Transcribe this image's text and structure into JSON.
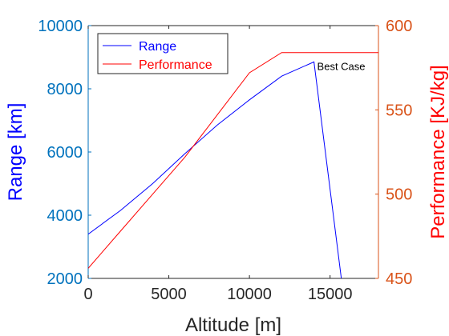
{
  "chart_data": {
    "type": "line",
    "title": "",
    "xlabel": "Altitude [m]",
    "ylabel_left": "Range [km]",
    "ylabel_right": "Performance [KJ/kg]",
    "xlim": [
      0,
      18000
    ],
    "ylim_left": [
      2000,
      10000
    ],
    "ylim_right": [
      450,
      600
    ],
    "xticks": [
      "0",
      "5000",
      "10000",
      "15000"
    ],
    "yticks_left": [
      "2000",
      "4000",
      "6000",
      "8000",
      "10000"
    ],
    "yticks_right": [
      "450",
      "500",
      "550",
      "600"
    ],
    "grid": false,
    "legend_position": "top-left",
    "series": [
      {
        "name": "Range",
        "axis": "left",
        "color": "#0000ff",
        "x": [
          0,
          2000,
          4000,
          6000,
          8000,
          10000,
          12000,
          14000,
          15700
        ],
        "y": [
          3400,
          4150,
          5000,
          5950,
          6850,
          7650,
          8400,
          8850,
          2000
        ]
      },
      {
        "name": "Performance",
        "axis": "right",
        "color": "#ff0000",
        "x": [
          0,
          2000,
          4000,
          6000,
          8000,
          10000,
          12000,
          18000
        ],
        "y": [
          456,
          478,
          500,
          522,
          547,
          572,
          584,
          584
        ]
      }
    ],
    "annotations": [
      {
        "text": "Best Case",
        "x": 14000,
        "y": 8850,
        "axis": "left"
      }
    ],
    "colors": {
      "left_axis": "#0072bd",
      "right_axis": "#d95319",
      "left_label": "#0000ff",
      "right_label": "#ff0000",
      "x_axis": "#262626"
    }
  }
}
